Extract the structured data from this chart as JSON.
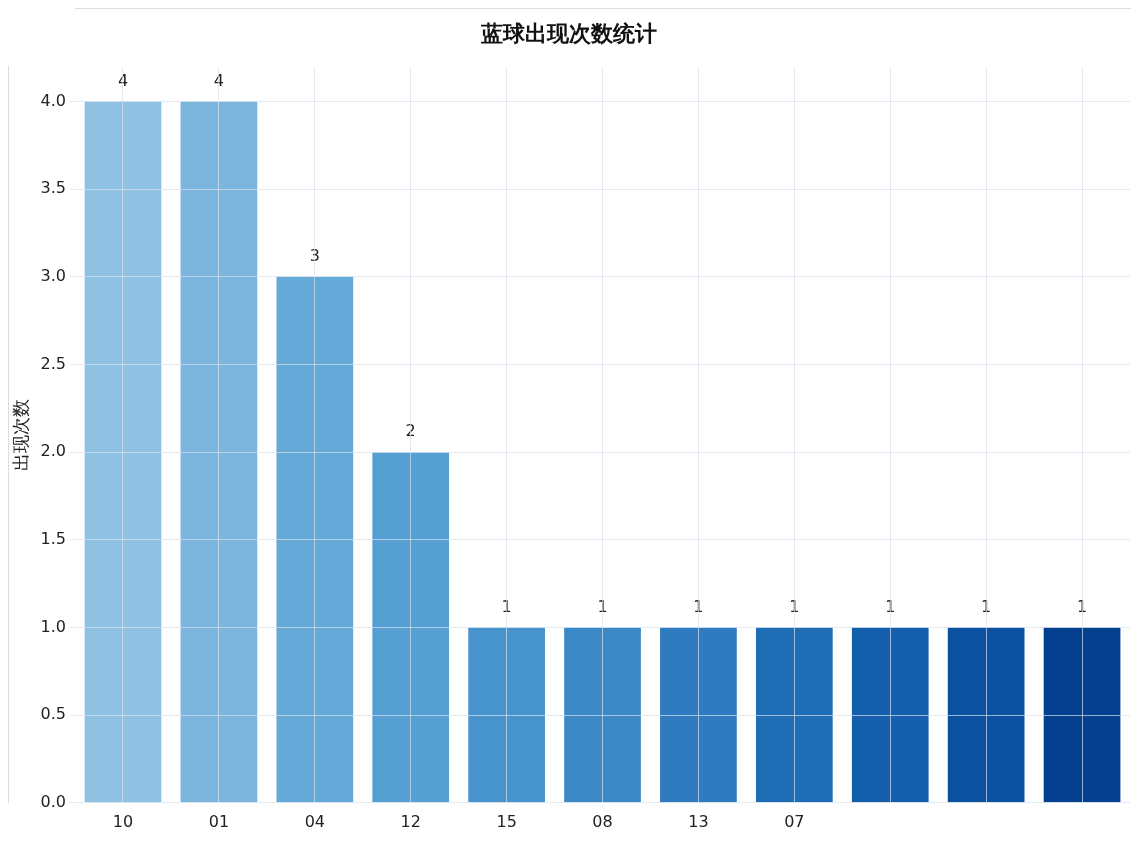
{
  "chart_data": {
    "type": "bar",
    "title": "蓝球出现次数统计",
    "ylabel": "出现次数",
    "categories": [
      "10",
      "01",
      "04",
      "12",
      "15",
      "08",
      "13",
      "07",
      null,
      null,
      null
    ],
    "values": [
      4,
      4,
      3,
      2,
      1,
      1,
      1,
      1,
      1,
      1,
      1
    ],
    "colors": [
      "#8fc1e3",
      "#7cb5dd",
      "#65a9d8",
      "#559fd3",
      "#4794cc",
      "#3a88c5",
      "#2e7cbf",
      "#1f6db5",
      "#135fac",
      "#0a52a0",
      "#053f8f"
    ],
    "ylim": [
      0,
      4.2
    ],
    "yticks": [
      {
        "value": 0,
        "label": "0.0"
      },
      {
        "value": 0.5,
        "label": "0.5"
      },
      {
        "value": 1,
        "label": "1.0"
      },
      {
        "value": 1.5,
        "label": "1.5"
      },
      {
        "value": 2,
        "label": "2.0"
      },
      {
        "value": 2.5,
        "label": "2.5"
      },
      {
        "value": 3,
        "label": "3.0"
      },
      {
        "value": 3.5,
        "label": "3.5"
      },
      {
        "value": 4,
        "label": "4.0"
      }
    ],
    "grid": true,
    "data_labels": true
  }
}
